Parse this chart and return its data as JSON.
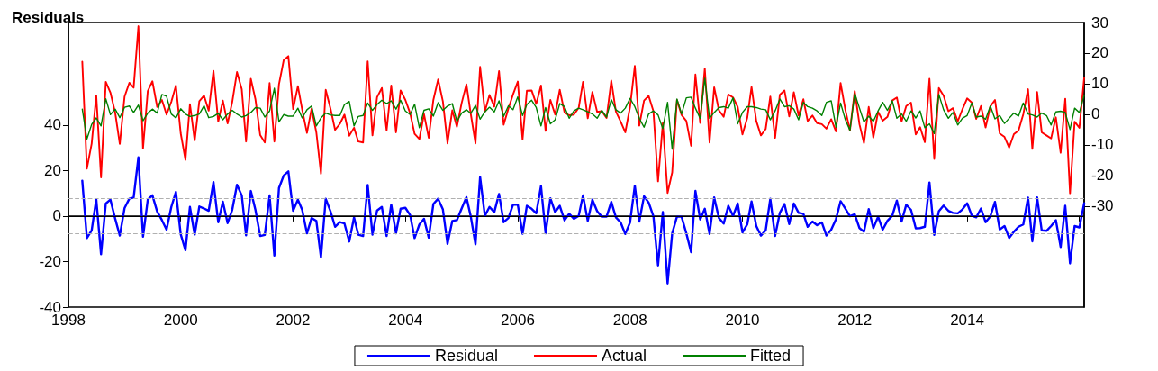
{
  "chart_data": {
    "type": "line",
    "title": "Residuals",
    "x": [
      "1998-04",
      "1998-05",
      "1998-06",
      "1998-07",
      "1998-08",
      "1998-09",
      "1998-10",
      "1998-11",
      "1998-12",
      "1999-01",
      "1999-02",
      "1999-03",
      "1999-04",
      "1999-05",
      "1999-06",
      "1999-07",
      "1999-08",
      "1999-09",
      "1999-10",
      "1999-11",
      "1999-12",
      "2000-01",
      "2000-02",
      "2000-03",
      "2000-04",
      "2000-05",
      "2000-06",
      "2000-07",
      "2000-08",
      "2000-09",
      "2000-10",
      "2000-11",
      "2000-12",
      "2001-01",
      "2001-02",
      "2001-03",
      "2001-04",
      "2001-05",
      "2001-06",
      "2001-07",
      "2001-08",
      "2001-09",
      "2001-10",
      "2001-11",
      "2001-12",
      "2002-01",
      "2002-02",
      "2002-03",
      "2002-04",
      "2002-05",
      "2002-06",
      "2002-07",
      "2002-08",
      "2002-09",
      "2002-10",
      "2002-11",
      "2002-12",
      "2003-01",
      "2003-02",
      "2003-03",
      "2003-04",
      "2003-05",
      "2003-06",
      "2003-07",
      "2003-08",
      "2003-09",
      "2003-10",
      "2003-11",
      "2003-12",
      "2004-01",
      "2004-02",
      "2004-03",
      "2004-04",
      "2004-05",
      "2004-06",
      "2004-07",
      "2004-08",
      "2004-09",
      "2004-10",
      "2004-11",
      "2004-12",
      "2005-01",
      "2005-02",
      "2005-03",
      "2005-04",
      "2005-05",
      "2005-06",
      "2005-07",
      "2005-08",
      "2005-09",
      "2005-10",
      "2005-11",
      "2005-12",
      "2006-01",
      "2006-02",
      "2006-03",
      "2006-04",
      "2006-05",
      "2006-06",
      "2006-07",
      "2006-08",
      "2006-09",
      "2006-10",
      "2006-11",
      "2006-12",
      "2007-01",
      "2007-02",
      "2007-03",
      "2007-04",
      "2007-05",
      "2007-06",
      "2007-07",
      "2007-08",
      "2007-09",
      "2007-10",
      "2007-11",
      "2007-12",
      "2008-01",
      "2008-02",
      "2008-03",
      "2008-04",
      "2008-05",
      "2008-06",
      "2008-07",
      "2008-08",
      "2008-09",
      "2008-10",
      "2008-11",
      "2008-12",
      "2009-01",
      "2009-02",
      "2009-03",
      "2009-04",
      "2009-05",
      "2009-06",
      "2009-07",
      "2009-08",
      "2009-09",
      "2009-10",
      "2009-11",
      "2009-12",
      "2010-01",
      "2010-02",
      "2010-03",
      "2010-04",
      "2010-05",
      "2010-06",
      "2010-07",
      "2010-08",
      "2010-09",
      "2010-10",
      "2010-11",
      "2010-12",
      "2011-01",
      "2011-02",
      "2011-03",
      "2011-04",
      "2011-05",
      "2011-06",
      "2011-07",
      "2011-08",
      "2011-09",
      "2011-10",
      "2011-11",
      "2011-12",
      "2012-01",
      "2012-02",
      "2012-03",
      "2012-04",
      "2012-05",
      "2012-06",
      "2012-07",
      "2012-08",
      "2012-09",
      "2012-10",
      "2012-11",
      "2012-12",
      "2013-01",
      "2013-02",
      "2013-03",
      "2013-04",
      "2013-05",
      "2013-06",
      "2013-07",
      "2013-08",
      "2013-09",
      "2013-10",
      "2013-11",
      "2013-12",
      "2014-01",
      "2014-02",
      "2014-03",
      "2014-04",
      "2014-05",
      "2014-06",
      "2014-07",
      "2014-08",
      "2014-09",
      "2014-10",
      "2014-11",
      "2014-12",
      "2015-01",
      "2015-02",
      "2015-03",
      "2015-04",
      "2015-05",
      "2015-06",
      "2015-07",
      "2015-08",
      "2015-09",
      "2015-10",
      "2015-11",
      "2015-12",
      "2016-01",
      "2016-02"
    ],
    "series": [
      {
        "name": "Residual",
        "color": "#0000ff",
        "axis": "y",
        "values": [
          15.5,
          -9.7,
          -6.3,
          7.4,
          -16.8,
          5.5,
          7.2,
          -1.2,
          -8.6,
          3.5,
          7.6,
          8.1,
          25.8,
          -9.1,
          7.2,
          9.1,
          2.0,
          -1.8,
          -6.0,
          4.0,
          10.6,
          -8.0,
          -15.0,
          4.0,
          -8.2,
          4.2,
          3.3,
          2.3,
          14.9,
          -2.7,
          6.3,
          -3.1,
          2.7,
          13.7,
          9.1,
          -8.5,
          11.0,
          2.7,
          -8.8,
          -8.3,
          9.1,
          -17.4,
          12.3,
          17.8,
          19.6,
          2.3,
          7.2,
          2.7,
          -7.6,
          -0.9,
          -2.1,
          -18.2,
          7.6,
          2.1,
          -4.7,
          -2.7,
          -3.3,
          -11.2,
          -0.6,
          -8.2,
          -8.8,
          13.6,
          -8.2,
          2.4,
          4.0,
          -8.8,
          5.0,
          -7.6,
          3.2,
          3.6,
          0.4,
          -9.7,
          -3.7,
          -1.2,
          -9.5,
          5.3,
          7.6,
          2.9,
          -12.2,
          -2.2,
          -1.8,
          3.3,
          8.3,
          -0.1,
          -12.4,
          17.1,
          0.1,
          4.0,
          1.7,
          9.7,
          -2.7,
          -0.9,
          5.0,
          5.0,
          -7.8,
          4.5,
          3.2,
          1.2,
          13.2,
          -7.6,
          7.8,
          1.7,
          4.5,
          -1.9,
          1.0,
          -1.2,
          0.1,
          9.1,
          -2.1,
          7.2,
          2.1,
          -0.3,
          -0.3,
          6.2,
          -0.6,
          -2.8,
          -7.9,
          -2.8,
          13.3,
          -2.4,
          8.7,
          5.9,
          -0.1,
          -21.7,
          1.8,
          -29.6,
          -7.6,
          -0.3,
          -0.3,
          -7.6,
          -15.9,
          11.0,
          -1.5,
          3.2,
          -7.9,
          8.2,
          -0.9,
          -3.3,
          4.5,
          0.1,
          5.5,
          -7.2,
          -3.7,
          6.4,
          -4.4,
          -8.6,
          -6.3,
          7.6,
          -8.8,
          1.4,
          5.3,
          -3.5,
          5.5,
          1.4,
          1.0,
          -4.7,
          -2.4,
          -4.0,
          -2.8,
          -8.6,
          -6.0,
          -1.4,
          6.5,
          3.3,
          -0.1,
          0.8,
          -5.3,
          -6.9,
          3.0,
          -5.3,
          -0.3,
          -6.0,
          -2.1,
          0.1,
          6.8,
          -2.4,
          5.0,
          2.7,
          -5.4,
          -5.3,
          -4.7,
          14.7,
          -8.3,
          2.1,
          4.6,
          2.3,
          1.4,
          1.2,
          2.9,
          5.6,
          0.1,
          -0.6,
          3.3,
          -2.7,
          -0.1,
          6.2,
          -5.9,
          -4.4,
          -9.6,
          -6.9,
          -4.7,
          -3.7,
          8.1,
          -11.1,
          8.2,
          -6.3,
          -6.5,
          -4.4,
          -1.8,
          -13.6,
          4.5,
          -20.8,
          -4.4,
          -5.0,
          5.6
        ]
      },
      {
        "name": "Actual",
        "color": "#ff0000",
        "axis": "y2",
        "values": [
          17.2,
          -17.8,
          -9.6,
          6.2,
          -20.6,
          10.6,
          7.1,
          0.5,
          -9.7,
          5.8,
          10.3,
          8.7,
          28.8,
          -11.2,
          7.6,
          10.8,
          2.4,
          4.7,
          -0.1,
          4.1,
          9.4,
          -6.2,
          -14.9,
          3.3,
          -8.6,
          4.3,
          6.1,
          1.2,
          14.2,
          -2.4,
          4.5,
          -3.0,
          4.0,
          13.8,
          8.2,
          -8.9,
          11.6,
          4.9,
          -6.8,
          -9.2,
          10.2,
          -8.9,
          9.8,
          17.7,
          19.0,
          1.7,
          9.2,
          1.5,
          -6.1,
          1.8,
          -5.9,
          -19.4,
          8.0,
          1.9,
          -5.1,
          -3.1,
          -0.1,
          -7.0,
          -4.4,
          -8.9,
          -9.2,
          17.3,
          -6.9,
          5.6,
          8.6,
          -5.3,
          9.4,
          -5.9,
          7.8,
          4.7,
          0.3,
          -6.4,
          -8.1,
          0.1,
          -7.7,
          4.7,
          11.4,
          4.2,
          -9.5,
          1.3,
          -4.1,
          3.7,
          9.8,
          0.2,
          -9.5,
          15.5,
          0.9,
          6.3,
          2.5,
          14.1,
          -3.4,
          1.9,
          6.5,
          10.7,
          -8.2,
          7.7,
          7.8,
          3.4,
          9.4,
          -5.4,
          4.7,
          -0.1,
          8.0,
          0.6,
          -0.3,
          -0.1,
          2.1,
          10.6,
          -1.3,
          7.3,
          0.8,
          1.0,
          -1.2,
          11.0,
          0.9,
          -2.4,
          -5.9,
          2.4,
          15.8,
          -3.7,
          4.5,
          6.0,
          1.0,
          -21.9,
          -2.9,
          -25.7,
          -19.0,
          4.7,
          -0.2,
          -2.2,
          -10.3,
          13.0,
          -2.8,
          15.0,
          -9.2,
          8.8,
          1.3,
          -0.8,
          6.5,
          5.5,
          2.4,
          -6.6,
          -1.2,
          8.9,
          -2.2,
          -6.9,
          -4.8,
          5.8,
          -7.7,
          6.4,
          7.8,
          -0.7,
          7.2,
          -0.4,
          4.9,
          -2.2,
          -0.4,
          -2.9,
          -3.2,
          -4.7,
          -1.6,
          -5.6,
          10.2,
          1.5,
          -5.3,
          7.6,
          -3.3,
          -9.4,
          2.4,
          -7.6,
          0.8,
          -2.1,
          -0.8,
          4.5,
          5.5,
          -2.3,
          2.7,
          3.8,
          -6.6,
          -4.2,
          -9.1,
          11.6,
          -14.6,
          8.6,
          6.1,
          1.0,
          2.0,
          -2.3,
          1.6,
          5.2,
          3.8,
          -1.5,
          2.7,
          -4.3,
          2.6,
          4.7,
          -6.3,
          -7.4,
          -10.9,
          -6.5,
          -5.3,
          0.0,
          8.2,
          -11.3,
          7.3,
          -5.9,
          -6.9,
          -7.9,
          -1.0,
          -12.6,
          5.1,
          -25.8,
          -2.4,
          -4.4,
          11.9
        ]
      },
      {
        "name": "Fitted",
        "color": "#008000",
        "axis": "y2",
        "values": [
          1.7,
          -8.1,
          -3.3,
          -1.2,
          -3.8,
          5.1,
          -0.1,
          1.7,
          -1.1,
          2.3,
          2.7,
          0.6,
          3.0,
          -2.1,
          0.4,
          1.7,
          0.4,
          6.5,
          5.9,
          0.1,
          -1.2,
          1.8,
          0.1,
          -0.7,
          -0.4,
          0.1,
          2.8,
          -1.1,
          -0.7,
          0.3,
          -1.8,
          0.1,
          1.3,
          0.1,
          -0.9,
          -0.4,
          0.6,
          2.2,
          2.0,
          -0.9,
          1.1,
          8.5,
          -2.5,
          -0.1,
          -0.6,
          -0.6,
          2.0,
          -1.2,
          1.5,
          2.7,
          -3.8,
          -1.2,
          0.4,
          -0.2,
          -0.4,
          -0.4,
          3.2,
          4.2,
          -3.8,
          -0.7,
          -0.4,
          3.7,
          1.3,
          3.2,
          4.6,
          3.5,
          4.4,
          1.7,
          4.6,
          1.1,
          -0.1,
          3.3,
          -4.4,
          1.3,
          1.8,
          -0.6,
          3.8,
          1.3,
          2.7,
          3.5,
          -2.3,
          0.4,
          1.5,
          0.3,
          2.9,
          -1.6,
          0.8,
          2.3,
          0.8,
          4.4,
          -0.7,
          2.8,
          1.5,
          5.7,
          -0.4,
          3.2,
          4.6,
          2.2,
          -3.8,
          2.2,
          -3.1,
          -1.8,
          3.5,
          2.5,
          -1.3,
          1.1,
          2.0,
          1.5,
          0.8,
          0.1,
          -1.3,
          1.3,
          -0.9,
          4.8,
          1.5,
          0.4,
          2.0,
          5.2,
          2.5,
          -1.3,
          -4.2,
          0.1,
          1.1,
          -0.2,
          -4.7,
          3.9,
          -11.4,
          5.0,
          0.1,
          5.4,
          5.6,
          2.0,
          -1.3,
          11.8,
          -1.3,
          0.6,
          2.2,
          2.5,
          2.0,
          5.4,
          -3.1,
          0.6,
          2.5,
          2.5,
          2.2,
          1.7,
          1.5,
          -1.8,
          1.1,
          5.0,
          2.5,
          2.8,
          1.7,
          -1.8,
          3.9,
          2.5,
          2.0,
          1.1,
          -0.4,
          3.9,
          4.4,
          -4.2,
          3.7,
          -1.8,
          -5.2,
          6.8,
          2.0,
          -2.5,
          -0.6,
          -2.3,
          1.1,
          3.9,
          1.3,
          4.4,
          -1.3,
          0.1,
          -2.3,
          1.1,
          -1.2,
          1.1,
          -4.4,
          -3.1,
          -6.3,
          6.5,
          1.5,
          -1.3,
          0.6,
          -3.5,
          -1.3,
          -0.4,
          3.7,
          -0.9,
          -0.6,
          -1.6,
          2.7,
          -1.5,
          -0.4,
          -3.0,
          -1.3,
          0.4,
          -0.6,
          3.7,
          0.1,
          -0.2,
          -0.9,
          0.4,
          -0.4,
          -3.5,
          0.8,
          1.0,
          0.6,
          -5.0,
          2.0,
          0.6,
          6.3
        ]
      }
    ],
    "xlim": [
      "1998-01",
      "2016-02"
    ],
    "xticks": [
      {
        "value": "1998",
        "label": "1998"
      },
      {
        "value": "2000",
        "label": "2000"
      },
      {
        "value": "2002",
        "label": "2002"
      },
      {
        "value": "2004",
        "label": "2004"
      },
      {
        "value": "2006",
        "label": "2006"
      },
      {
        "value": "2008",
        "label": "2008"
      },
      {
        "value": "2010",
        "label": "2010"
      },
      {
        "value": "2012",
        "label": "2012"
      },
      {
        "value": "2014",
        "label": "2014"
      },
      {
        "value": "2016",
        "label": null
      }
    ],
    "ylim": [
      -40,
      85
    ],
    "yticks": [
      -40,
      -20,
      0,
      20,
      40
    ],
    "y2lim": [
      -63,
      30
    ],
    "y2ticks": [
      -30,
      -20,
      -10,
      0,
      10,
      20,
      30
    ],
    "ref_lines": [
      {
        "axis": "y",
        "value": 0,
        "color": "#000000",
        "line_style": "solid"
      },
      {
        "axis": "y",
        "value": 7.8,
        "color": "#b0b0b0",
        "line_style": "dashed"
      },
      {
        "axis": "y",
        "value": -7.8,
        "color": "#b0b0b0",
        "line_style": "dashed"
      }
    ],
    "legend": "bottom",
    "grid": false,
    "marker": "none",
    "line_style": "solid"
  }
}
